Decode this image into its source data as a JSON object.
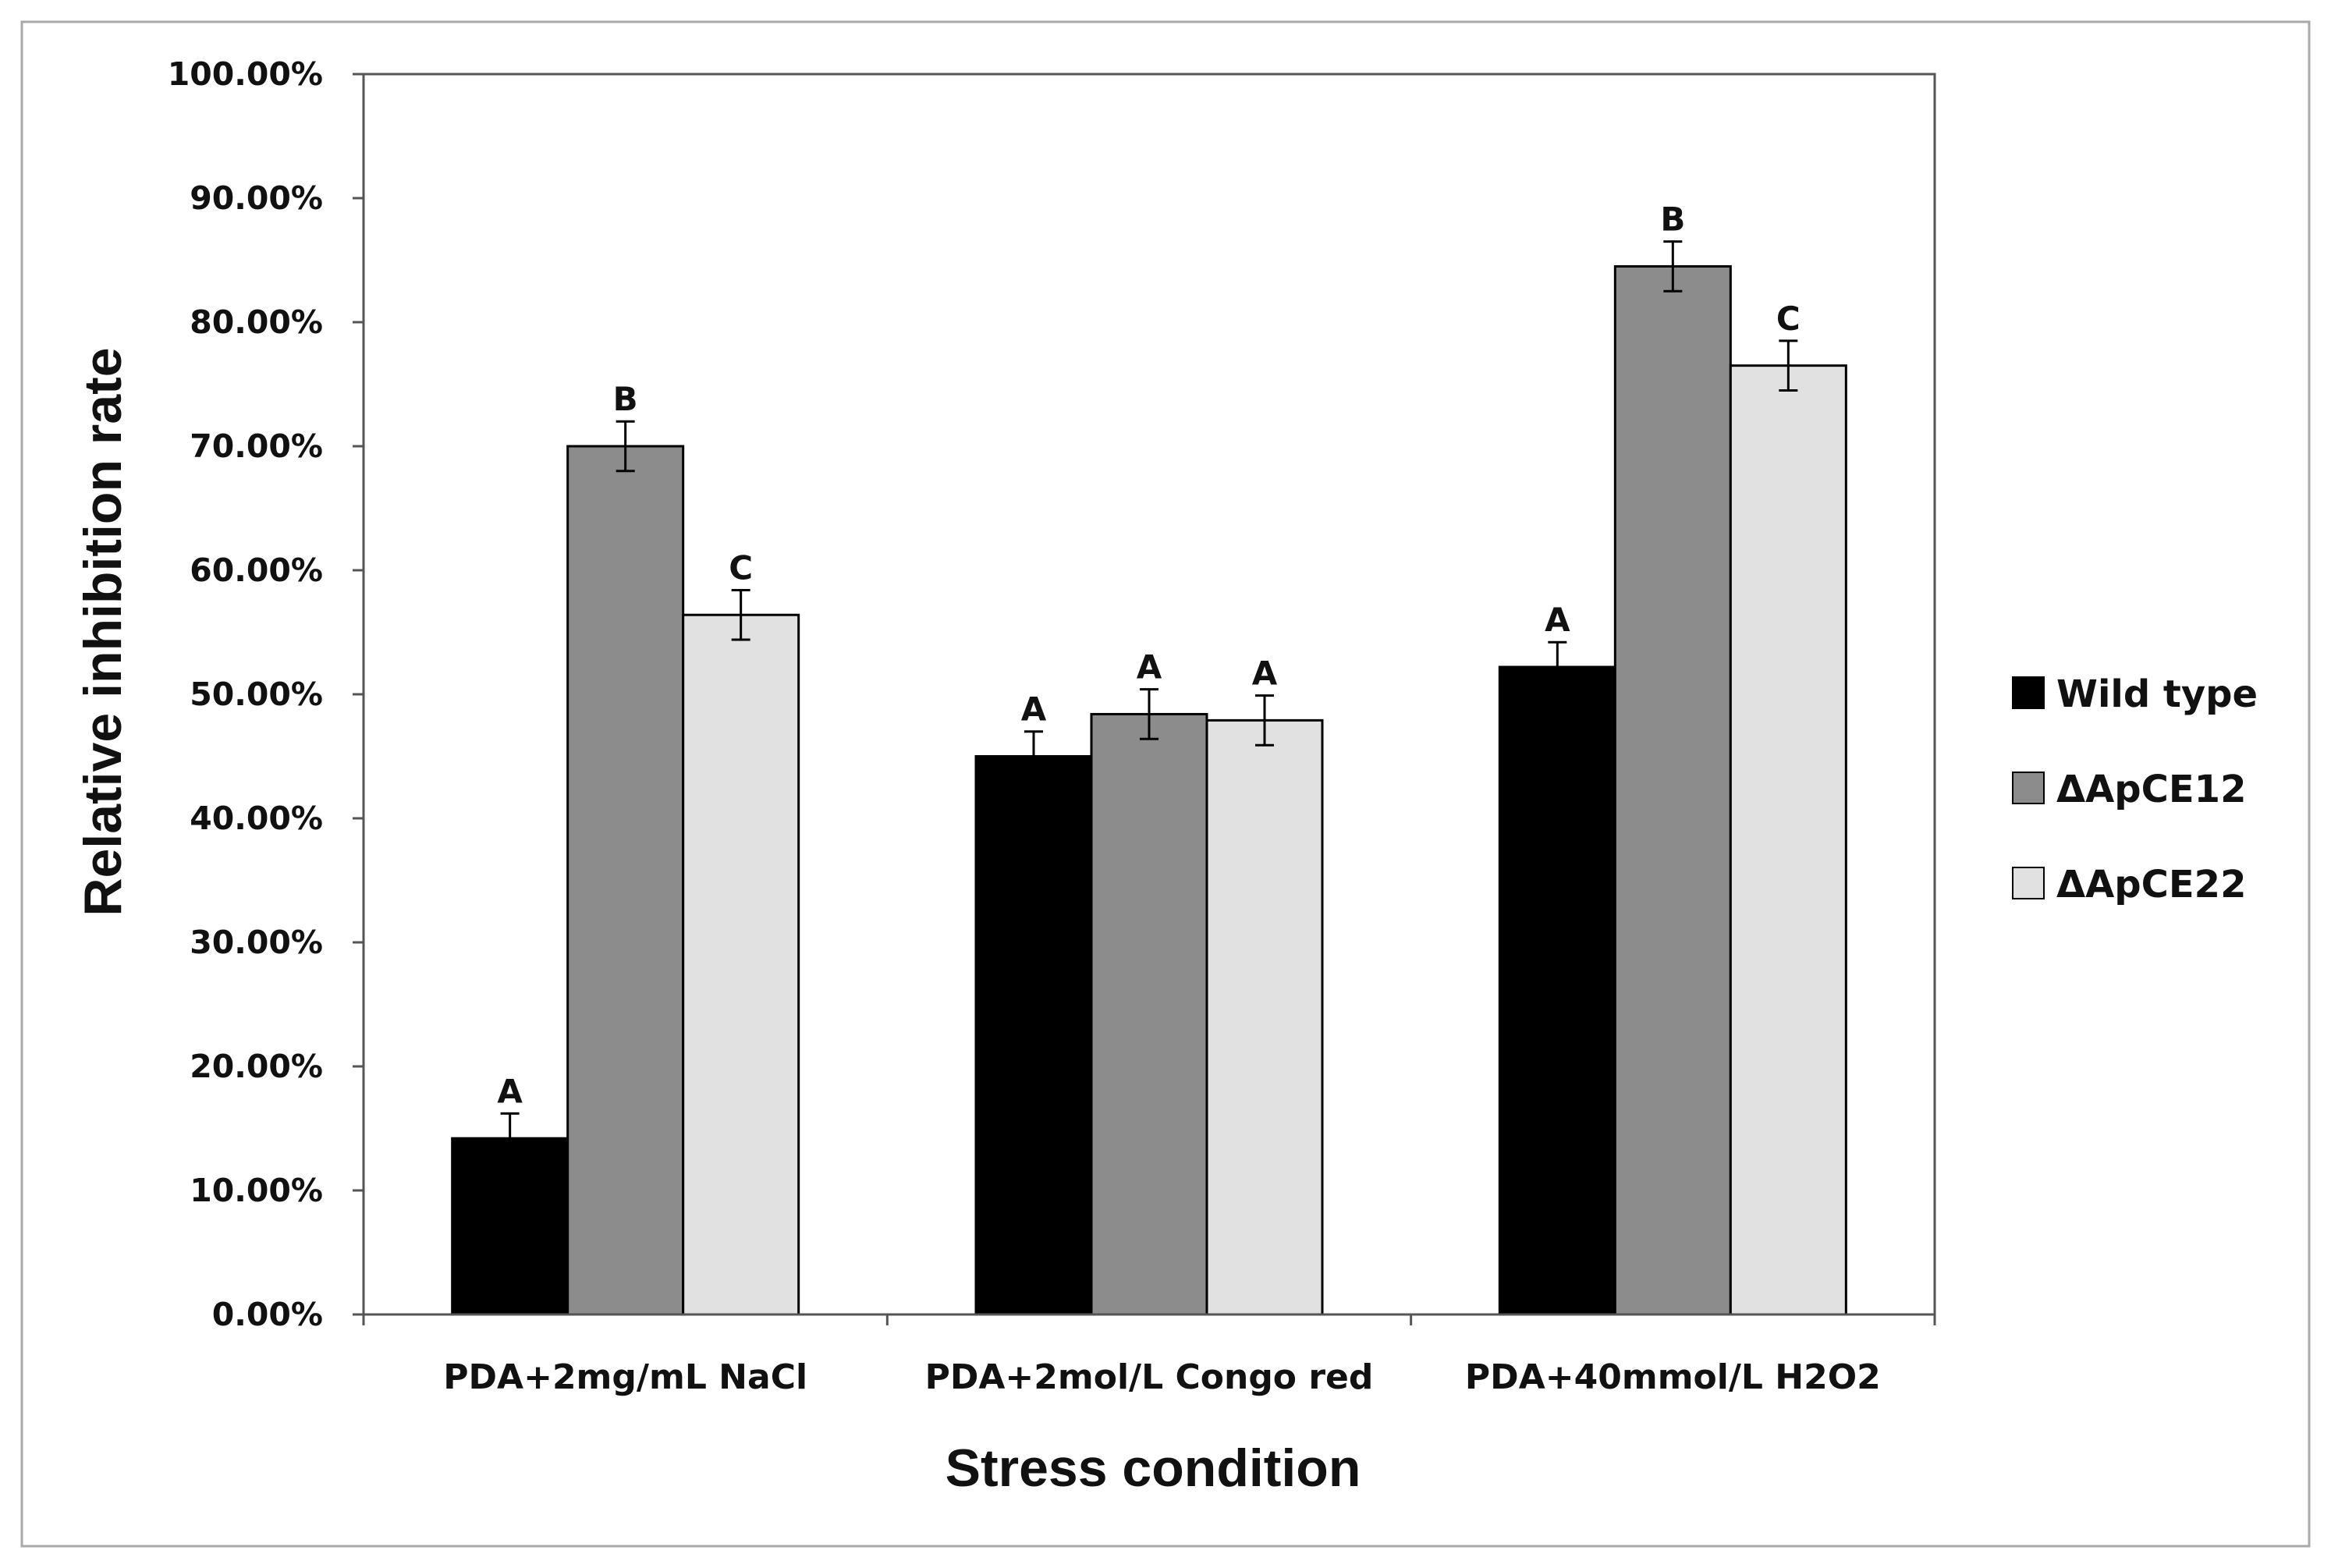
{
  "chart_data": {
    "type": "bar",
    "title": "",
    "xlabel": "Stress condition",
    "ylabel": "Relative inhibition rate",
    "ylim": [
      0,
      1
    ],
    "ytick_step": 0.1,
    "ytick_labels": [
      "0.00%",
      "10.00%",
      "20.00%",
      "30.00%",
      "40.00%",
      "50.00%",
      "60.00%",
      "70.00%",
      "80.00%",
      "90.00%",
      "100.00%"
    ],
    "categories": [
      "PDA+2mg/mL NaCl",
      "PDA+2mol/L Congo red",
      "PDA+40mmol/L H2O2"
    ],
    "series": [
      {
        "name": "Wild type",
        "color": "#000000",
        "values": [
          0.142,
          0.45,
          0.522
        ],
        "errors": [
          0.02,
          0.02,
          0.02
        ],
        "significance": [
          "A",
          "A",
          "A"
        ]
      },
      {
        "name": "ΔApCE12",
        "color": "#8c8c8c",
        "values": [
          0.7,
          0.484,
          0.845
        ],
        "errors": [
          0.02,
          0.02,
          0.02
        ],
        "significance": [
          "B",
          "A",
          "B"
        ]
      },
      {
        "name": "ΔApCE22",
        "color": "#e1e1e1",
        "values": [
          0.564,
          0.479,
          0.765
        ],
        "errors": [
          0.02,
          0.02,
          0.02
        ],
        "significance": [
          "C",
          "A",
          "C"
        ]
      }
    ],
    "grid": false,
    "legend_position": "right"
  }
}
